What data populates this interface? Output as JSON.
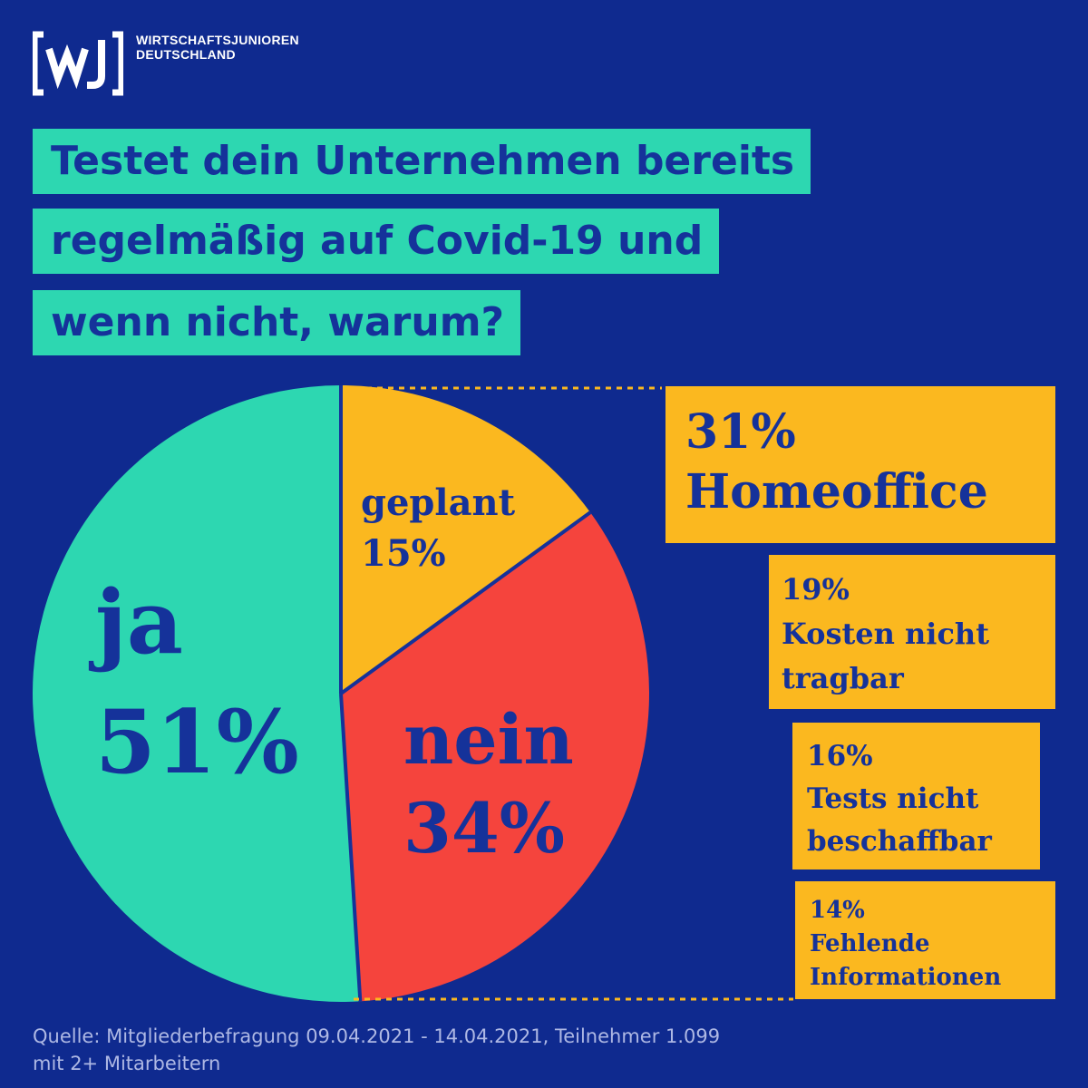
{
  "brand": {
    "name_line1": "WIRTSCHAFTSJUNIOREN",
    "name_line2": "DEUTSCHLAND",
    "logo_letters": "[wJ]"
  },
  "title": {
    "lines": [
      "Testet dein Unternehmen bereits",
      "regelmäßig auf Covid-19 und",
      "wenn nicht, warum?"
    ]
  },
  "chart_data": {
    "type": "pie",
    "slices": [
      {
        "label": "ja",
        "value": 51,
        "display": "51%",
        "color": "#2dd7b1"
      },
      {
        "label": "nein",
        "value": 34,
        "display": "34%",
        "color": "#f5443d"
      },
      {
        "label": "geplant",
        "value": 15,
        "display": "15%",
        "color": "#fbb81f"
      }
    ],
    "breakdown_of": "nein",
    "breakdown": [
      {
        "value": "31%",
        "label_lines": [
          "Homeoffice"
        ]
      },
      {
        "value": "19%",
        "label_lines": [
          "Kosten nicht",
          "tragbar"
        ]
      },
      {
        "value": "16%",
        "label_lines": [
          "Tests nicht",
          "beschaffbar"
        ]
      },
      {
        "value": "14%",
        "label_lines": [
          "Fehlende",
          "Informationen"
        ]
      }
    ],
    "colors": {
      "background": "#0f2a8f",
      "text": "#15329a",
      "separator": "#15329a",
      "leader": "#fbb81f"
    }
  },
  "source": {
    "line1": "Quelle: Mitgliederbefragung 09.04.2021 - 14.04.2021, Teilnehmer 1.099",
    "line2": "mit 2+ Mitarbeitern"
  }
}
